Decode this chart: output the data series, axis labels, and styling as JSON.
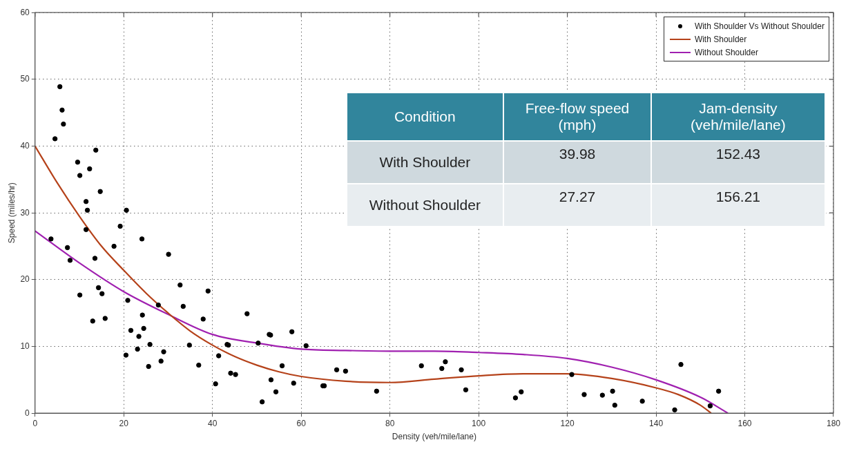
{
  "chart_data": {
    "type": "scatter",
    "xlabel": "Density (veh/mile/lane)",
    "ylabel": "Speed (miles/hr)",
    "xlim": [
      0,
      180
    ],
    "ylim": [
      0,
      60
    ],
    "xticks": [
      0,
      20,
      40,
      60,
      80,
      100,
      120,
      140,
      160,
      180
    ],
    "yticks": [
      0,
      10,
      20,
      30,
      40,
      50,
      60
    ],
    "grid": true,
    "legend": "top right",
    "annotations": [
      "Condition",
      "Free-flow speed (mph)",
      "Jam-density (veh/mile/lane)",
      "With Shoulder",
      "39.98",
      "152.43",
      "Without Shoulder",
      "27.27",
      "156.21"
    ],
    "series": [
      {
        "name": "With Shoulder Vs Without Shoulder",
        "type": "scatter",
        "marker": "circle",
        "color": "#000000",
        "x": [
          3.6,
          4.5,
          5.6,
          6.1,
          6.4,
          7.3,
          7.9,
          9.6,
          10.1,
          10.1,
          11.5,
          11.8,
          11.5,
          12.3,
          13.7,
          13.5,
          13.0,
          14.3,
          14.7,
          15.1,
          15.8,
          17.8,
          19.2,
          20.6,
          20.5,
          21.6,
          24.1,
          24.2,
          24.5,
          23.4,
          25.9,
          23.1,
          29.0,
          20.9,
          28.4,
          25.6,
          27.8,
          30.1,
          32.7,
          33.4,
          34.8,
          36.9,
          37.9,
          39.0,
          40.7,
          41.4,
          43.3,
          43.6,
          44.1,
          45.2,
          47.8,
          50.3,
          51.2,
          52.8,
          53.1,
          53.2,
          54.3,
          55.7,
          57.9,
          58.3,
          61.1,
          64.9,
          65.2,
          68.0,
          70.0,
          77.0,
          87.1,
          91.7,
          92.5,
          96.1,
          97.1,
          108.3,
          109.6,
          121.0,
          123.8,
          127.9,
          130.2,
          130.7,
          136.9,
          144.2,
          145.6,
          152.2,
          154.1
        ],
        "values": [
          26.1,
          41.1,
          48.9,
          45.4,
          43.3,
          24.8,
          22.9,
          37.6,
          35.6,
          17.7,
          31.7,
          30.4,
          27.5,
          36.6,
          39.4,
          23.2,
          13.8,
          18.8,
          33.2,
          17.9,
          14.2,
          25.0,
          28.0,
          30.4,
          8.7,
          12.4,
          26.1,
          14.7,
          12.7,
          11.5,
          10.3,
          9.6,
          9.2,
          16.9,
          7.8,
          7.0,
          16.2,
          23.8,
          19.2,
          16.0,
          10.2,
          7.2,
          14.1,
          18.3,
          4.4,
          8.6,
          10.3,
          10.2,
          6.0,
          5.8,
          14.9,
          10.5,
          1.7,
          11.8,
          11.7,
          5.0,
          3.2,
          7.1,
          12.2,
          4.5,
          10.1,
          4.1,
          4.1,
          6.5,
          6.3,
          3.3,
          7.1,
          6.7,
          7.7,
          6.5,
          3.5,
          2.3,
          3.2,
          5.8,
          2.8,
          2.7,
          3.3,
          1.2,
          1.8,
          0.5,
          7.3,
          1.1,
          3.3
        ]
      },
      {
        "name": "With Shoulder",
        "type": "line",
        "marker": "none",
        "line_style": "solid",
        "color": "#b5421a",
        "x": [
          0,
          5,
          10,
          15,
          20,
          25,
          30,
          35,
          40,
          45,
          50,
          55,
          60,
          70,
          80,
          90,
          100,
          110,
          120,
          130,
          140,
          145,
          150,
          152.43
        ],
        "values": [
          40,
          34.5,
          29.5,
          25,
          21.4,
          18,
          15,
          12.3,
          10.2,
          8.5,
          7.2,
          6.2,
          5.5,
          4.8,
          4.6,
          5.1,
          5.6,
          5.9,
          5.9,
          5.2,
          3.8,
          2.8,
          1.2,
          0
        ]
      },
      {
        "name": "Without Shoulder",
        "type": "line",
        "marker": "none",
        "line_style": "solid",
        "color": "#a020b0",
        "x": [
          0,
          10,
          20,
          30,
          40,
          50,
          60,
          70,
          80,
          90,
          100,
          110,
          120,
          130,
          140,
          150,
          156.21
        ],
        "values": [
          27.3,
          22.5,
          18.2,
          14.8,
          11.8,
          10.5,
          9.6,
          9.4,
          9.3,
          9.3,
          9.1,
          8.8,
          8.2,
          6.9,
          5.0,
          2.4,
          0
        ]
      }
    ]
  }
}
